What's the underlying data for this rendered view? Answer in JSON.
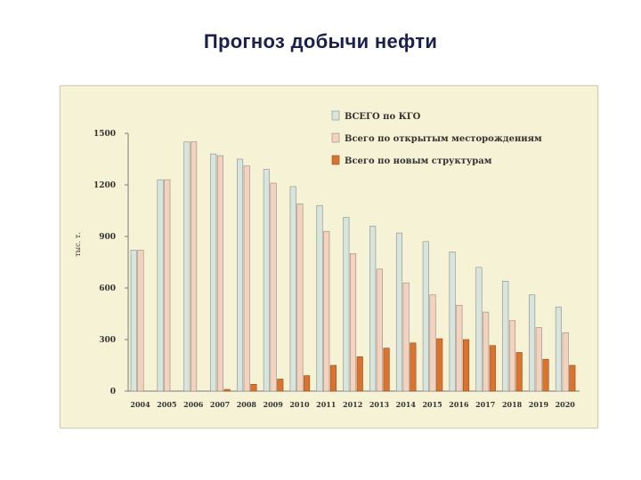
{
  "slide": {
    "title": "Прогноз добычи нефти"
  },
  "chart_data": {
    "type": "bar",
    "title": "",
    "xlabel": "",
    "ylabel": "тыс. т.",
    "ylim": [
      0,
      1500
    ],
    "yticks": [
      0,
      300,
      600,
      900,
      1200,
      1500
    ],
    "grid": false,
    "legend_position": "top-right",
    "categories": [
      "2004",
      "2005",
      "2006",
      "2007",
      "2008",
      "2009",
      "2010",
      "2011",
      "2012",
      "2013",
      "2014",
      "2015",
      "2016",
      "2017",
      "2018",
      "2019",
      "2020"
    ],
    "series": [
      {
        "name": "ВСЕГО по КГО",
        "color": "#d7e5dd",
        "values": [
          820,
          1230,
          1450,
          1380,
          1350,
          1290,
          1190,
          1080,
          1010,
          960,
          920,
          870,
          810,
          720,
          640,
          560,
          490
        ]
      },
      {
        "name": "Всего по открытым месторождениям",
        "color": "#f5d2bd",
        "values": [
          820,
          1230,
          1450,
          1370,
          1310,
          1210,
          1090,
          930,
          800,
          710,
          630,
          560,
          500,
          460,
          410,
          370,
          340
        ]
      },
      {
        "name": "Всего по новым структурам",
        "color": "#d8742f",
        "values": [
          0,
          0,
          0,
          10,
          40,
          70,
          90,
          150,
          200,
          250,
          280,
          305,
          300,
          265,
          225,
          185,
          150
        ]
      }
    ]
  }
}
